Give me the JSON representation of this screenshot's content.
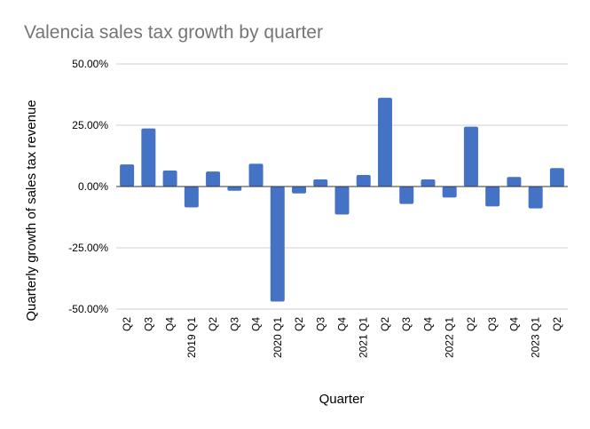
{
  "chart_data": {
    "type": "bar",
    "title": "Valencia sales tax growth by quarter",
    "xlabel": "Quarter",
    "ylabel": "Quarterly growth of sales tax revenue",
    "ylim": [
      -50,
      50
    ],
    "yticks": [
      50,
      25,
      0,
      -25,
      -50
    ],
    "ytick_labels": [
      "50.00%",
      "25.00%",
      "0.00%",
      "-25.00%",
      "-50.00%"
    ],
    "grid": true,
    "bar_color": "#4472C4",
    "categories": [
      "Q2",
      "Q3",
      "Q4",
      "2019 Q1",
      "Q2",
      "Q3",
      "Q4",
      "2020 Q1",
      "Q2",
      "Q3",
      "Q4",
      "2021 Q1",
      "Q2",
      "Q3",
      "Q4",
      "2022 Q1",
      "Q2",
      "Q3",
      "Q4",
      "2023 Q1",
      "Q2"
    ],
    "values": [
      9.0,
      23.7,
      6.5,
      -8.5,
      6.1,
      -1.7,
      9.3,
      -46.9,
      -2.8,
      2.9,
      -11.4,
      4.7,
      36.2,
      -7.1,
      2.9,
      -4.5,
      24.4,
      -8.1,
      3.9,
      -8.9,
      7.5
    ]
  }
}
